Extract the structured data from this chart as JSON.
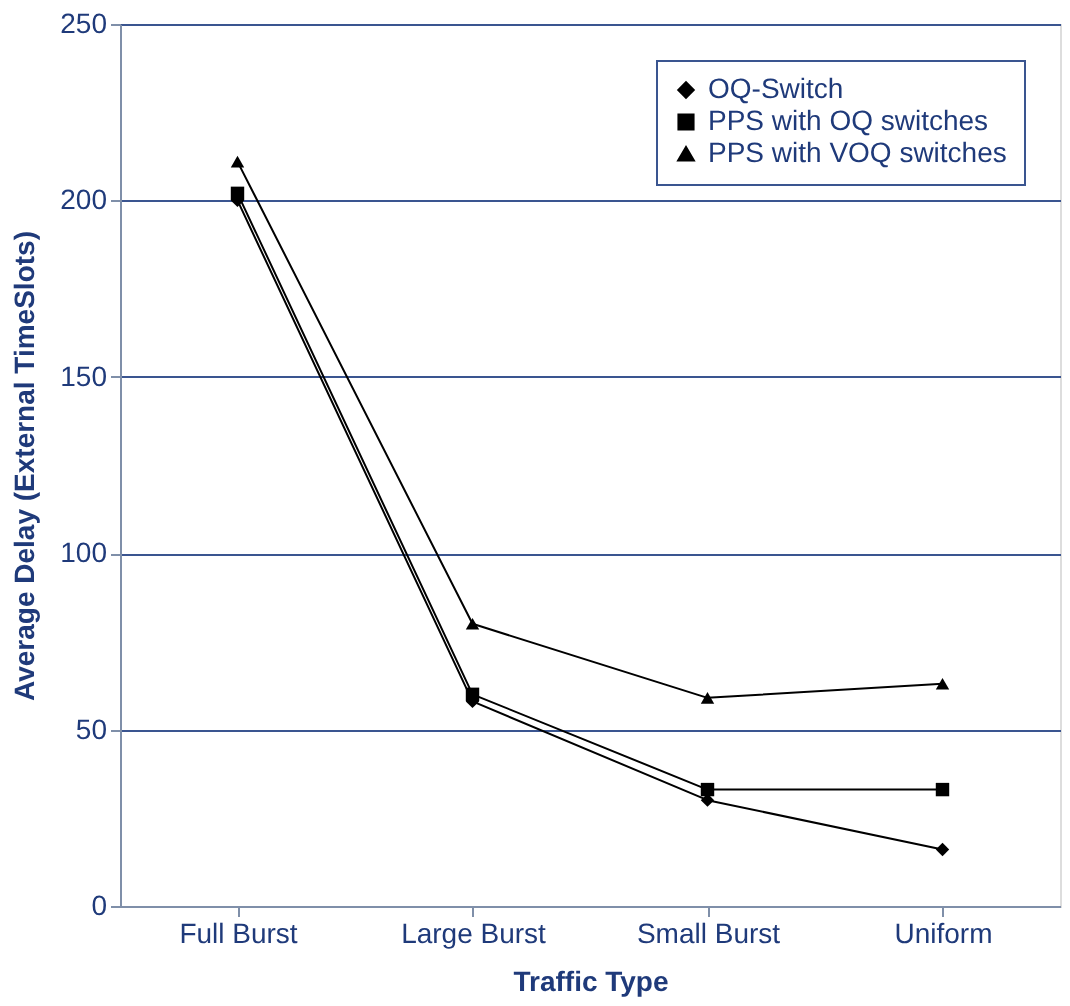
{
  "chart_data": {
    "type": "line",
    "xlabel": "Traffic Type",
    "ylabel": "Average Delay (External TimeSlots)",
    "categories": [
      "Full Burst",
      "Large Burst",
      "Small Burst",
      "Uniform"
    ],
    "series": [
      {
        "name": "OQ-Switch",
        "color": "#000000",
        "marker": "diamond",
        "values": [
          200,
          58,
          30,
          16
        ]
      },
      {
        "name": "PPS with OQ switches",
        "color": "#000000",
        "marker": "square",
        "values": [
          202,
          60,
          33,
          33
        ]
      },
      {
        "name": "PPS with VOQ switches",
        "color": "#000000",
        "marker": "triangle",
        "values": [
          211,
          80,
          59,
          63
        ]
      }
    ],
    "ylim": [
      0,
      250
    ],
    "yticks": [
      0,
      50,
      100,
      150,
      200,
      250
    ],
    "grid": "y",
    "legend": "top right",
    "line_style": "solid"
  }
}
